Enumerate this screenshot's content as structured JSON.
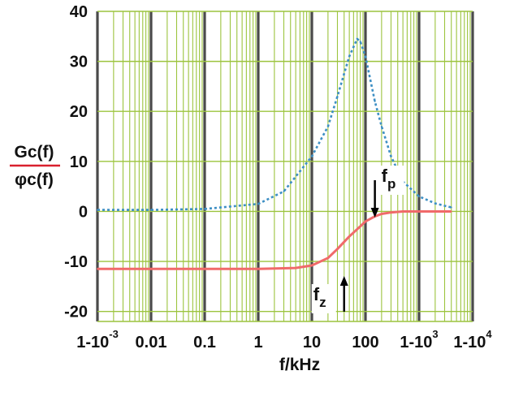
{
  "chart_data": {
    "type": "line",
    "title": "",
    "xlabel": "f/kHz",
    "ylabel_numerator": "Gc(f)",
    "ylabel_denominator": "φc(f)",
    "x_scale": "log",
    "xlim": [
      0.001,
      10000
    ],
    "ylim": [
      -22,
      40
    ],
    "grid": true,
    "x_ticks": [
      {
        "value": 0.001,
        "base": "1-10",
        "sup": "-3"
      },
      {
        "value": 0.01,
        "base": "0.01",
        "sup": ""
      },
      {
        "value": 0.1,
        "base": "0.1",
        "sup": ""
      },
      {
        "value": 1,
        "base": "1",
        "sup": ""
      },
      {
        "value": 10,
        "base": "10",
        "sup": ""
      },
      {
        "value": 100,
        "base": "100",
        "sup": ""
      },
      {
        "value": 1000,
        "base": "1-10",
        "sup": "3"
      },
      {
        "value": 10000,
        "base": "1-10",
        "sup": "4"
      }
    ],
    "y_ticks": [
      {
        "value": 40,
        "label": "40"
      },
      {
        "value": 30,
        "label": "30"
      },
      {
        "value": 20,
        "label": "20"
      },
      {
        "value": 10,
        "label": "10"
      },
      {
        "value": 0,
        "label": "0"
      },
      {
        "value": -10,
        "label": "-10"
      },
      {
        "value": -20,
        "label": "-20"
      }
    ],
    "series": [
      {
        "color": "#3d8fc4",
        "style": "dotted",
        "x": [
          0.001,
          0.01,
          0.1,
          1,
          3,
          10,
          20,
          30,
          50,
          70,
          80,
          100,
          150,
          200,
          300,
          500,
          1000,
          2000,
          4000
        ],
        "y": [
          0.3,
          0.3,
          0.5,
          1.5,
          4,
          11,
          17,
          23,
          31,
          34.5,
          34,
          31,
          22,
          17,
          11,
          6,
          3,
          1.6,
          0.8
        ]
      },
      {
        "color": "#f06a6a",
        "style": "solid",
        "x": [
          0.001,
          0.01,
          0.1,
          1,
          5,
          10,
          20,
          30,
          50,
          80,
          100,
          150,
          200,
          300,
          500,
          1000,
          4000
        ],
        "y": [
          -11.5,
          -11.5,
          -11.5,
          -11.5,
          -11.3,
          -10.8,
          -9.3,
          -7.5,
          -5,
          -3,
          -2,
          -1,
          -0.5,
          -0.2,
          0,
          0,
          0
        ]
      }
    ],
    "annotations": [
      {
        "label": "f",
        "sub": "p",
        "x": 150,
        "arrow": "down"
      },
      {
        "label": "f",
        "sub": "z",
        "x": 40,
        "arrow": "up"
      }
    ]
  }
}
